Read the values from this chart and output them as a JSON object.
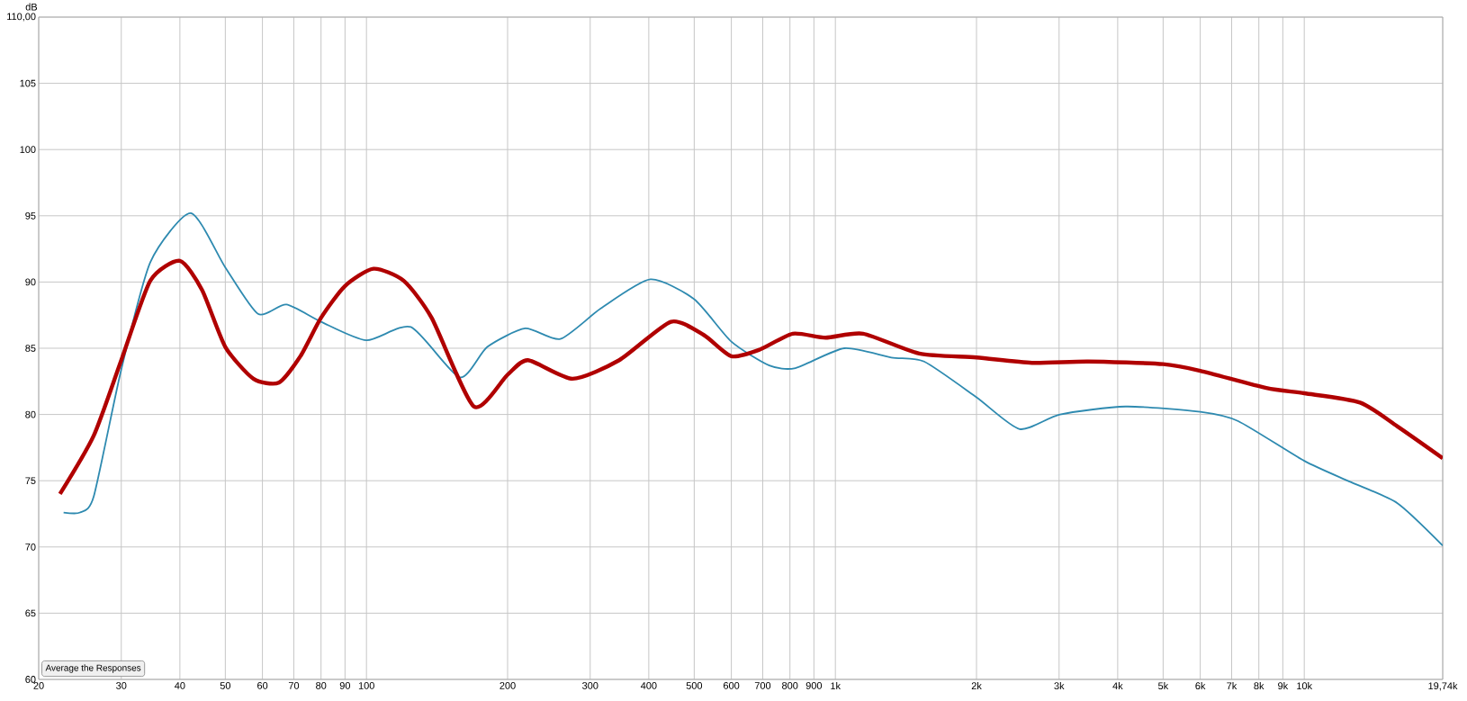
{
  "chart_data": {
    "type": "line",
    "ylabel": "dB",
    "log": "x",
    "grid": true,
    "marker": "none",
    "line_style": "solid",
    "xlim": [
      20,
      19740
    ],
    "ylim": [
      60,
      110
    ],
    "xticks": [
      20,
      30,
      40,
      50,
      60,
      70,
      80,
      90,
      100,
      200,
      300,
      400,
      500,
      600,
      700,
      800,
      900,
      {
        "value": 1000,
        "label": "1k"
      },
      {
        "value": 2000,
        "label": "2k"
      },
      {
        "value": 3000,
        "label": "3k"
      },
      {
        "value": 4000,
        "label": "4k"
      },
      {
        "value": 5000,
        "label": "5k"
      },
      {
        "value": 6000,
        "label": "6k"
      },
      {
        "value": 7000,
        "label": "7k"
      },
      {
        "value": 8000,
        "label": "8k"
      },
      {
        "value": 9000,
        "label": "9k"
      },
      {
        "value": 10000,
        "label": "10k"
      },
      {
        "value": 19740,
        "label": "19,74k"
      }
    ],
    "yticks": [
      60,
      65,
      70,
      75,
      80,
      85,
      90,
      95,
      100,
      105,
      {
        "value": 110,
        "label": "110,00"
      }
    ],
    "annotations": [
      "Average the Responses"
    ],
    "series": [
      {
        "color": "#2e8ab0",
        "x": [
          22.6,
          24.5,
          26.2,
          30,
          34.6,
          42.2,
          50,
          58.7,
          67.5,
          80,
          100,
          124.4,
          158,
          181,
          218,
          259,
          316,
          403,
          500,
          600,
          723,
          822,
          1045,
          1316,
          1546,
          2000,
          2472,
          3013,
          4160,
          6000,
          7230,
          10000,
          12560,
          15800,
          19740
        ],
        "values": [
          72.6,
          72.6,
          73.8,
          83.4,
          91.5,
          95.2,
          91.1,
          87.6,
          88.3,
          87.0,
          85.6,
          86.6,
          82.8,
          85.1,
          86.5,
          85.7,
          88.0,
          90.2,
          88.7,
          85.5,
          83.7,
          83.5,
          85.0,
          84.3,
          84.0,
          81.3,
          78.9,
          80.0,
          80.6,
          80.2,
          79.5,
          76.5,
          74.9,
          73.3,
          70.1
        ]
      },
      {
        "color": "#b00000",
        "x": [
          22.2,
          26.2,
          30,
          34.6,
          40,
          44.6,
          50,
          57.4,
          65,
          72.3,
          80,
          90,
          103.5,
          120,
          137.7,
          169.5,
          200,
          221,
          275,
          346,
          446,
          524,
          600,
          690,
          811,
          953,
          1146,
          1510,
          2000,
          2625,
          3460,
          5000,
          6000,
          8300,
          10000,
          13150,
          15800,
          19740
        ],
        "values": [
          74.0,
          78.4,
          84.1,
          90.1,
          91.6,
          89.4,
          85.1,
          82.7,
          82.4,
          84.4,
          87.3,
          89.7,
          91.0,
          90.1,
          87.3,
          80.6,
          83.0,
          84.1,
          82.7,
          84.1,
          87.0,
          86.0,
          84.4,
          84.9,
          86.1,
          85.8,
          86.1,
          84.6,
          84.3,
          83.9,
          84.0,
          83.8,
          83.3,
          82.0,
          81.6,
          80.9,
          79.1,
          76.7
        ]
      }
    ]
  }
}
